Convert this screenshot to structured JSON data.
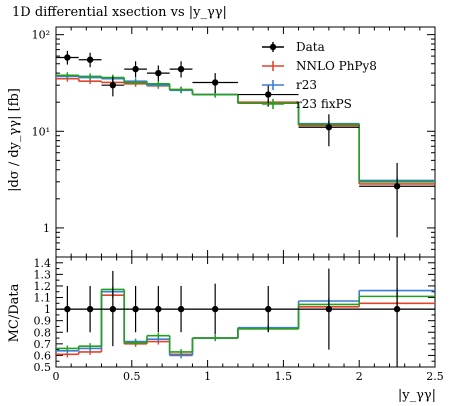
{
  "chart_data": [
    {
      "type": "line",
      "panel": "main",
      "title": "1D differential xsection vs |y_γγ|",
      "ylabel": "|dσ / dy_γγ| [fb]",
      "xlabel": "",
      "yscale": "log",
      "xlim": [
        0,
        2.5
      ],
      "ylim": [
        0.5,
        120
      ],
      "bin_edges": [
        0,
        0.15,
        0.3,
        0.45,
        0.6,
        0.75,
        0.9,
        1.2,
        1.6,
        2.0,
        2.5
      ],
      "y_ticks": [
        1,
        10,
        100
      ],
      "y_tick_labels": [
        "1",
        "10¹",
        "10²"
      ],
      "data": {
        "name": "Data",
        "color": "#000000",
        "x": [
          0.075,
          0.225,
          0.375,
          0.525,
          0.675,
          0.825,
          1.05,
          1.4,
          1.8,
          2.25
        ],
        "y": [
          58,
          55,
          30,
          44,
          40,
          44,
          32,
          24,
          11,
          2.7
        ],
        "yerr_up": [
          10,
          10,
          7,
          9,
          8,
          9,
          8,
          6,
          4,
          2.0
        ],
        "yerr_down": [
          9,
          9,
          7,
          8,
          7,
          8,
          7,
          6,
          4,
          1.9
        ]
      },
      "series": [
        {
          "name": "NNLO PhPy8",
          "color": "#e2442a",
          "values": [
            35,
            33,
            32,
            31,
            29.5,
            27,
            24,
            20,
            11.5,
            2.85
          ]
        },
        {
          "name": "r23",
          "color": "#3b7dd8",
          "values": [
            37,
            36,
            35,
            33,
            30,
            26.5,
            24,
            19.5,
            12,
            3.1
          ]
        },
        {
          "name": "r23 fixPS",
          "color": "#22a022",
          "values": [
            38,
            37,
            36,
            32,
            31,
            27,
            24,
            19.5,
            11.8,
            3.0
          ]
        }
      ],
      "legend": {
        "placement": "top-right"
      }
    },
    {
      "type": "line",
      "panel": "ratio",
      "ylabel": "MC/Data",
      "xlabel": "|y_γγ|",
      "xlim": [
        0,
        2.5
      ],
      "ylim": [
        0.5,
        1.45
      ],
      "x_ticks": [
        0,
        0.5,
        1,
        1.5,
        2,
        2.5
      ],
      "x_tick_labels": [
        "0",
        "0.5",
        "1",
        "1.5",
        "2",
        "2.5"
      ],
      "y_ticks": [
        0.5,
        0.6,
        0.7,
        0.8,
        0.9,
        1.0,
        1.1,
        1.2,
        1.3,
        1.4
      ],
      "y_tick_labels": [
        "0.5",
        "0.6",
        "0.7",
        "0.8",
        "0.9",
        "1",
        "1.1",
        "1.2",
        "1.3",
        "1.4"
      ],
      "bin_edges": [
        0,
        0.15,
        0.3,
        0.45,
        0.6,
        0.75,
        0.9,
        1.2,
        1.6,
        2.0,
        2.5
      ],
      "data": {
        "name": "Data",
        "color": "#000000",
        "x": [
          0.075,
          0.225,
          0.375,
          0.525,
          0.675,
          0.825,
          1.05,
          1.4,
          1.8,
          2.25
        ],
        "y": [
          1,
          1,
          1,
          1,
          1,
          1,
          1,
          1,
          1,
          1
        ],
        "yerr_up": [
          0.2,
          0.2,
          0.33,
          0.2,
          0.2,
          0.2,
          0.22,
          0.2,
          0.35,
          0.8
        ],
        "yerr_down": [
          0.2,
          0.2,
          0.32,
          0.2,
          0.2,
          0.2,
          0.22,
          0.2,
          0.35,
          0.8
        ]
      },
      "series": [
        {
          "name": "NNLO PhPy8",
          "color": "#e2442a",
          "values": [
            0.61,
            0.63,
            1.12,
            0.7,
            0.72,
            0.61,
            0.75,
            0.83,
            1.02,
            1.05
          ]
        },
        {
          "name": "r23",
          "color": "#3b7dd8",
          "values": [
            0.64,
            0.66,
            1.15,
            0.72,
            0.74,
            0.6,
            0.75,
            0.84,
            1.07,
            1.16
          ]
        },
        {
          "name": "r23 fixPS",
          "color": "#22a022",
          "values": [
            0.66,
            0.68,
            1.17,
            0.71,
            0.77,
            0.63,
            0.75,
            0.83,
            1.04,
            1.11
          ]
        }
      ]
    }
  ]
}
